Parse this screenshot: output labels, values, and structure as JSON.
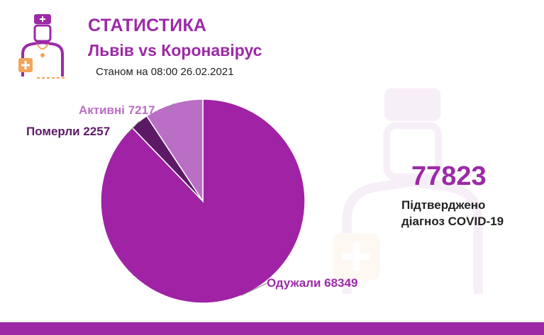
{
  "header": {
    "title": "СТАТИСТИКА",
    "subtitle": "Львів vs Коронавірус",
    "date": "Станом на 08:00 26.02.2021"
  },
  "colors": {
    "accent": "#9c2aa6",
    "active": "#bb6ec5",
    "deaths": "#5c1a66",
    "recovered": "#a022a5",
    "logo_orange": "#f2a45a"
  },
  "icons": [
    "doctor-logo-icon",
    "doctor-watermark-icon"
  ],
  "chart_data": {
    "type": "pie",
    "title": "",
    "slices": [
      {
        "name": "Одужали",
        "value": 68349,
        "color": "#a022a5",
        "label": "Одужали 68349"
      },
      {
        "name": "Померли",
        "value": 2257,
        "color": "#5c1a66",
        "label": "Померли 2257"
      },
      {
        "name": "Активні",
        "value": 7217,
        "color": "#bb6ec5",
        "label": "Активні 7217"
      }
    ]
  },
  "summary": {
    "total": "77823",
    "total_label_line1": "Підтверджено",
    "total_label_line2": "діагноз COVID-19"
  }
}
